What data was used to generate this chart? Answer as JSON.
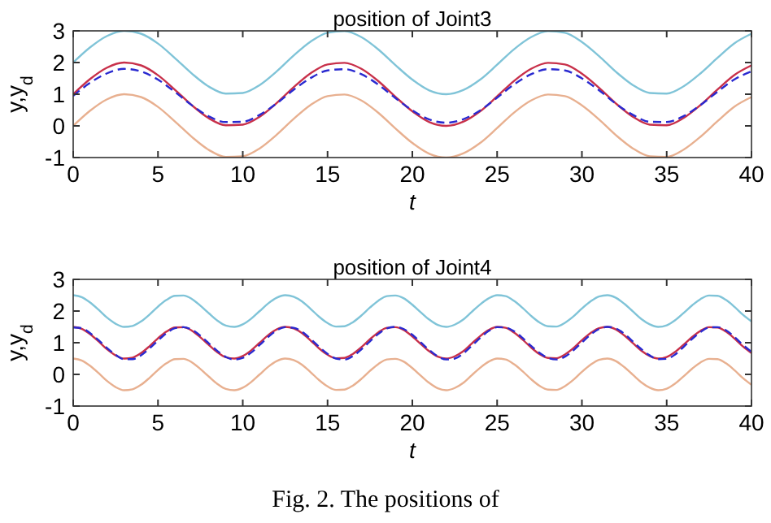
{
  "chart_data": [
    {
      "type": "line",
      "title": "position of Joint3",
      "xlabel": "t",
      "ylabel": "y,y$_{d}$",
      "xlim": [
        0,
        40
      ],
      "ylim": [
        -1,
        3
      ],
      "xticks": [
        0,
        5,
        10,
        15,
        20,
        25,
        30,
        35,
        40
      ],
      "yticks": [
        -1,
        0,
        1,
        2,
        3
      ],
      "grid": false,
      "x": [
        0,
        1,
        2,
        3,
        4,
        5,
        6,
        7,
        8,
        9,
        10,
        11,
        12,
        13,
        14,
        15,
        16,
        17,
        18,
        19,
        20,
        21,
        22,
        23,
        24,
        25,
        26,
        27,
        28,
        29,
        30,
        31,
        32,
        33,
        34,
        35,
        36,
        37,
        38,
        39,
        40
      ],
      "series": [
        {
          "color": "#80c4d8",
          "values": [
            2,
            2.48,
            2.84,
            3.0,
            2.91,
            2.6,
            2.14,
            1.65,
            1.24,
            1.02,
            1.04,
            1.29,
            1.72,
            2.22,
            2.66,
            2.94,
            2.99,
            2.8,
            2.41,
            1.92,
            1.46,
            1.12,
            1.0,
            1.13,
            1.46,
            1.93,
            2.42,
            2.8,
            2.99,
            2.94,
            2.65,
            2.21,
            1.71,
            1.29,
            1.04,
            1.02,
            1.25,
            1.66,
            2.15,
            2.61,
            2.91
          ]
        },
        {
          "color": "#e8b090",
          "values": [
            0,
            0.48,
            0.84,
            1.0,
            0.91,
            0.6,
            0.14,
            -0.35,
            -0.76,
            -0.98,
            -0.96,
            -0.71,
            -0.28,
            0.22,
            0.66,
            0.94,
            0.99,
            0.8,
            0.41,
            -0.08,
            -0.54,
            -0.88,
            -1.0,
            -0.87,
            -0.54,
            -0.07,
            0.42,
            0.8,
            0.99,
            0.94,
            0.65,
            0.21,
            -0.29,
            -0.71,
            -0.96,
            -0.98,
            -0.75,
            -0.34,
            0.15,
            0.61,
            0.91
          ]
        },
        {
          "color": "#c8304a",
          "values": [
            1,
            1.48,
            1.84,
            2.0,
            1.91,
            1.6,
            1.14,
            0.65,
            0.24,
            0.02,
            0.04,
            0.29,
            0.72,
            1.22,
            1.66,
            1.94,
            1.99,
            1.8,
            1.41,
            0.92,
            0.46,
            0.12,
            0,
            0.13,
            0.46,
            0.93,
            1.42,
            1.8,
            1.99,
            1.94,
            1.65,
            1.21,
            0.71,
            0.29,
            0.04,
            0.02,
            0.25,
            0.66,
            1.15,
            1.61,
            1.91
          ]
        },
        {
          "color": "#2a2ad0",
          "line_style": "dashed",
          "values": [
            0.95,
            1.36,
            1.66,
            1.8,
            1.72,
            1.46,
            1.07,
            0.65,
            0.3,
            0.12,
            0.13,
            0.35,
            0.71,
            1.14,
            1.51,
            1.75,
            1.79,
            1.63,
            1.3,
            0.88,
            0.49,
            0.2,
            0.1,
            0.21,
            0.49,
            0.89,
            1.31,
            1.63,
            1.79,
            1.75,
            1.5,
            1.13,
            0.7,
            0.35,
            0.13,
            0.12,
            0.31,
            0.66,
            1.08,
            1.47,
            1.72
          ]
        }
      ]
    },
    {
      "type": "line",
      "title": "position of Joint4",
      "xlabel": "t",
      "ylabel": "y,y$_{d}$",
      "xlim": [
        0,
        40
      ],
      "ylim": [
        -1,
        3
      ],
      "xticks": [
        0,
        5,
        10,
        15,
        20,
        25,
        30,
        35,
        40
      ],
      "yticks": [
        -1,
        0,
        1,
        2,
        3
      ],
      "grid": false,
      "annotations": [
        "Fig. 2. The positions of"
      ],
      "x": [
        0,
        0.5,
        1,
        1.5,
        2,
        2.5,
        3,
        3.5,
        4,
        4.5,
        5,
        5.5,
        6,
        6.5,
        7,
        7.5,
        8,
        8.5,
        9,
        9.5,
        10,
        10.5,
        11,
        11.5,
        12,
        12.5,
        13,
        13.5,
        14,
        14.5,
        15,
        15.5,
        16,
        16.5,
        17,
        17.5,
        18,
        18.5,
        19,
        19.5,
        20,
        20.5,
        21,
        21.5,
        22,
        22.5,
        23,
        23.5,
        24,
        24.5,
        25,
        25.5,
        26,
        26.5,
        27,
        27.5,
        28,
        28.5,
        29,
        29.5,
        30,
        30.5,
        31,
        31.5,
        32,
        32.5,
        33,
        33.5,
        34,
        34.5,
        35,
        35.5,
        36,
        36.5,
        37,
        37.5,
        38,
        38.5,
        39,
        39.5,
        40
      ],
      "series": [
        {
          "color": "#80c4d8",
          "values": [
            2.5,
            2.44,
            2.27,
            2.04,
            1.79,
            1.6,
            1.5,
            1.53,
            1.67,
            1.89,
            2.14,
            2.35,
            2.48,
            2.49,
            2.38,
            2.17,
            1.93,
            1.7,
            1.54,
            1.5,
            1.58,
            1.76,
            2,
            2.24,
            2.42,
            2.5,
            2.45,
            2.3,
            2.07,
            1.82,
            1.62,
            1.51,
            1.52,
            1.65,
            1.86,
            2.11,
            2.33,
            2.47,
            2.49,
            2.4,
            2.2,
            1.96,
            1.73,
            1.56,
            1.5,
            1.57,
            1.73,
            1.97,
            2.21,
            2.4,
            2.5,
            2.47,
            2.32,
            2.1,
            1.85,
            1.64,
            1.52,
            1.51,
            1.63,
            1.83,
            2.08,
            2.3,
            2.46,
            2.5,
            2.42,
            2.23,
            1.99,
            1.75,
            1.58,
            1.5,
            1.55,
            1.71,
            1.94,
            2.18,
            2.38,
            2.49,
            2.48,
            2.35,
            2.13,
            1.88,
            1.67
          ]
        },
        {
          "color": "#e8b090",
          "values": [
            0.5,
            0.44,
            0.27,
            0.04,
            -0.21,
            -0.4,
            -0.5,
            -0.47,
            -0.33,
            -0.11,
            0.14,
            0.35,
            0.48,
            0.49,
            0.38,
            0.17,
            -0.07,
            -0.3,
            -0.46,
            -0.5,
            -0.42,
            -0.24,
            0,
            0.24,
            0.42,
            0.5,
            0.45,
            0.3,
            0.07,
            -0.18,
            -0.38,
            -0.49,
            -0.48,
            -0.35,
            -0.14,
            0.11,
            0.33,
            0.47,
            0.49,
            0.4,
            0.2,
            -0.04,
            -0.27,
            -0.44,
            -0.5,
            -0.43,
            -0.27,
            -0.03,
            0.21,
            0.4,
            0.5,
            0.47,
            0.32,
            0.1,
            -0.15,
            -0.36,
            -0.48,
            -0.49,
            -0.37,
            -0.17,
            0.08,
            0.3,
            0.46,
            0.5,
            0.42,
            0.23,
            -0.01,
            -0.25,
            -0.42,
            -0.5,
            -0.45,
            -0.29,
            -0.06,
            0.18,
            0.38,
            0.49,
            0.48,
            0.35,
            0.13,
            -0.12,
            -0.33
          ]
        },
        {
          "color": "#c8304a",
          "values": [
            1.5,
            1.44,
            1.27,
            1.04,
            0.79,
            0.6,
            0.5,
            0.53,
            0.67,
            0.89,
            1.14,
            1.35,
            1.48,
            1.49,
            1.38,
            1.17,
            0.93,
            0.7,
            0.54,
            0.5,
            0.58,
            0.76,
            1,
            1.24,
            1.42,
            1.5,
            1.45,
            1.3,
            1.07,
            0.82,
            0.62,
            0.51,
            0.52,
            0.65,
            0.86,
            1.11,
            1.33,
            1.47,
            1.49,
            1.4,
            1.2,
            0.96,
            0.73,
            0.56,
            0.5,
            0.57,
            0.73,
            0.97,
            1.21,
            1.4,
            1.5,
            1.47,
            1.32,
            1.1,
            0.85,
            0.64,
            0.52,
            0.51,
            0.63,
            0.83,
            1.08,
            1.3,
            1.46,
            1.5,
            1.42,
            1.23,
            0.99,
            0.75,
            0.58,
            0.5,
            0.55,
            0.71,
            0.94,
            1.18,
            1.38,
            1.49,
            1.48,
            1.35,
            1.13,
            0.88,
            0.67
          ]
        },
        {
          "color": "#2a2ad0",
          "line_style": "dashed",
          "values": [
            1.48,
            1.46,
            1.3,
            1.08,
            0.83,
            0.62,
            0.48,
            0.48,
            0.6,
            0.82,
            1.07,
            1.3,
            1.46,
            1.49,
            1.41,
            1.22,
            0.98,
            0.74,
            0.55,
            0.47,
            0.52,
            0.69,
            0.93,
            1.18,
            1.39,
            1.49,
            1.47,
            1.34,
            1.12,
            0.87,
            0.65,
            0.5,
            0.47,
            0.58,
            0.79,
            1.04,
            1.28,
            1.45,
            1.5,
            1.43,
            1.25,
            1.01,
            0.77,
            0.57,
            0.47,
            0.5,
            0.66,
            0.9,
            1.15,
            1.37,
            1.49,
            1.48,
            1.36,
            1.15,
            0.9,
            0.68,
            0.52,
            0.47,
            0.56,
            0.76,
            1.01,
            1.25,
            1.43,
            1.5,
            1.45,
            1.28,
            1.04,
            0.8,
            0.6,
            0.48,
            0.49,
            0.63,
            0.87,
            1.12,
            1.34,
            1.48,
            1.49,
            1.39,
            1.18,
            0.93,
            0.71
          ]
        }
      ]
    }
  ]
}
